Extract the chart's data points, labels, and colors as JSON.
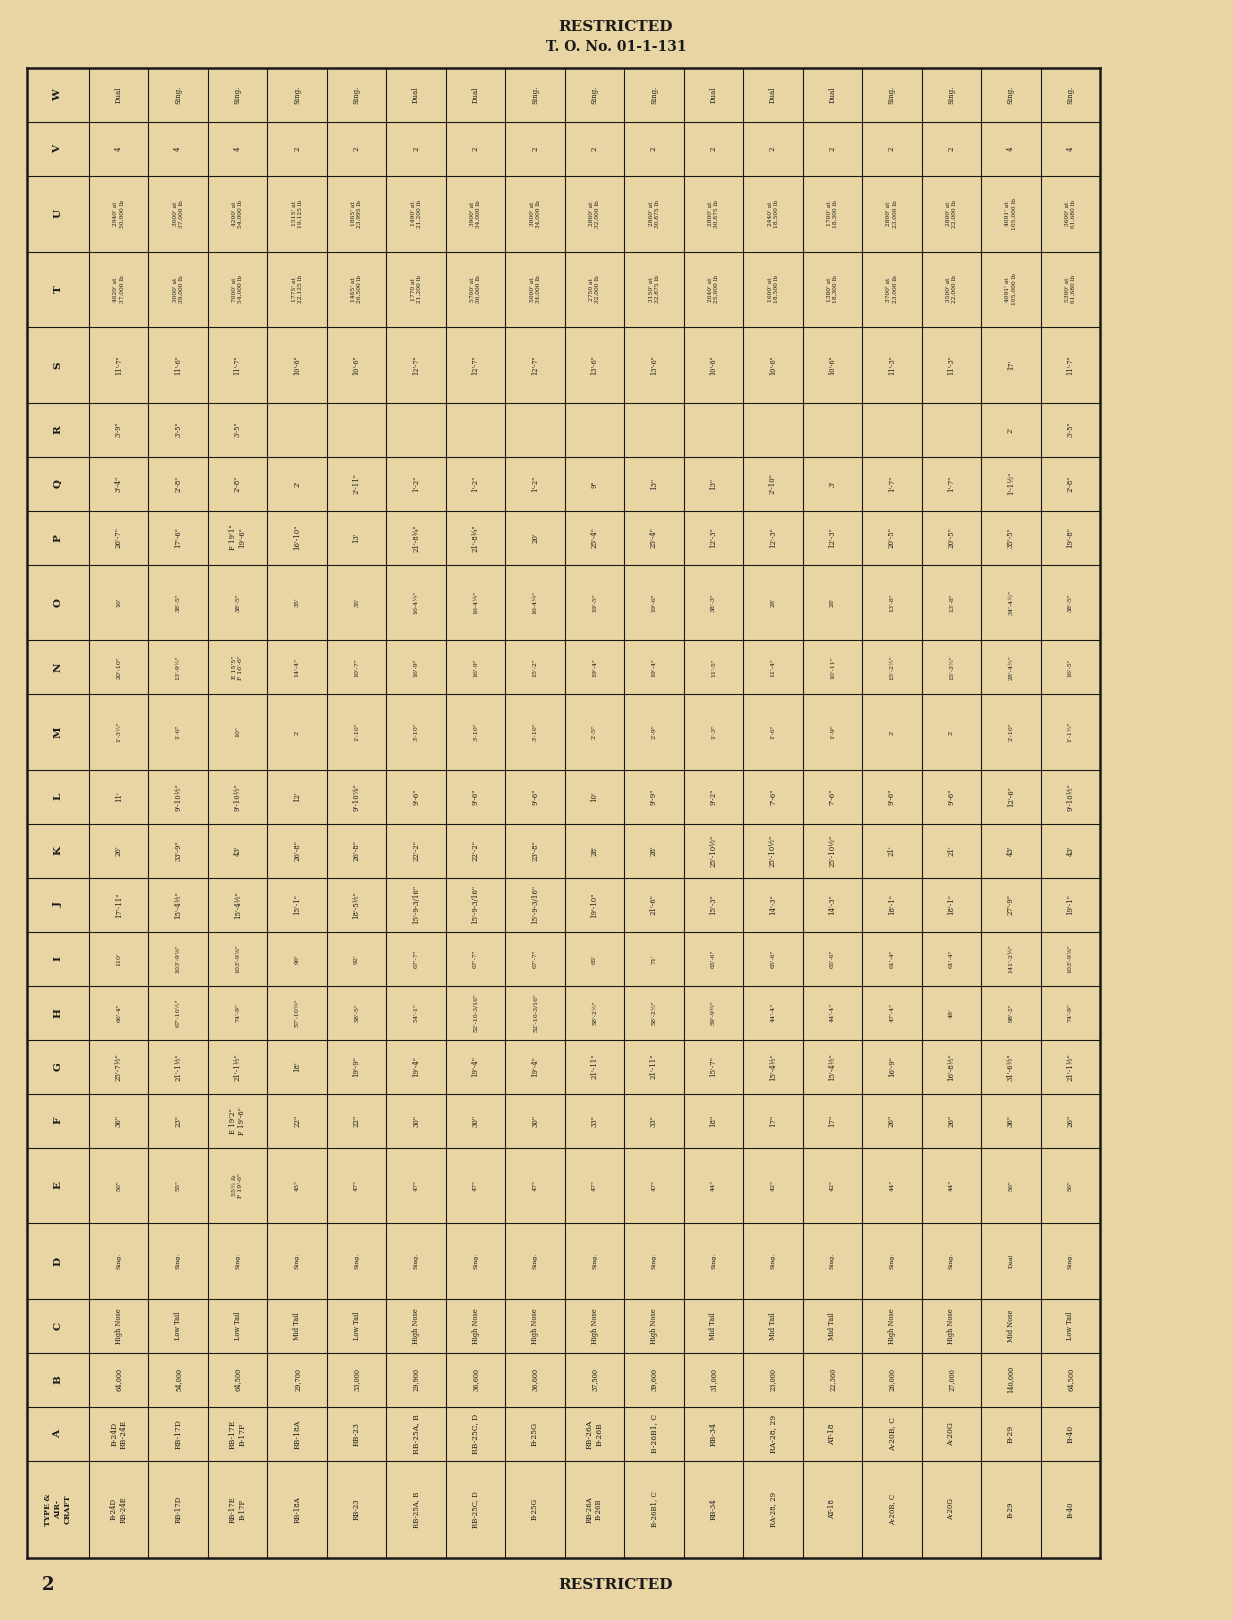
{
  "title1": "RESTRICTED",
  "title2": "T. O. No. 01-1-131",
  "page_num": "2",
  "footer": "RESTRICTED",
  "bg_color": "#E8D5A3",
  "line_color": "#1a1a1a",
  "text_color": "#1a1a1a",
  "row_headers": [
    "W",
    "V",
    "U",
    "T",
    "S",
    "R",
    "Q",
    "O",
    "P",
    "N",
    "M",
    "L",
    "K",
    "J",
    "I",
    "H",
    "G",
    "F",
    "E",
    "D",
    "C",
    "B",
    "A",
    "TYPE &\nAIR-\nCRAFT"
  ],
  "aircraft": [
    "B-24D\nRB-24E",
    "RB-17D",
    "RB-17E\nB-17F",
    "RB-18A",
    "RB-23",
    "RB-25A, B",
    "RB-25C, D",
    "B-25G",
    "RB-26A\nB-26B",
    "B-26B1, C",
    "RB-34",
    "RA-28, 29",
    "AT-18",
    "A-20B, C",
    "A-20G",
    "B-29",
    "B-40"
  ],
  "col_A": [
    "64,000",
    "54,000",
    "64,500",
    "29,700",
    "33,000",
    "29,900",
    "36,600",
    "36,600",
    "37,500",
    "39,600",
    "31,000",
    "23,000",
    "22,360",
    "26,000",
    "27,000",
    "140,000",
    "64,500"
  ],
  "col_B": [
    "High Nose",
    "Low Tail",
    "Low Tail",
    "Mid Tail",
    "Low Tail",
    "High Nose",
    "High Nose",
    "High Nose",
    "High Nose",
    "High Nose",
    "Mid Tail",
    "Mid Tail",
    "Mid Tail",
    "High Nose",
    "High Nose",
    "Mid Nose",
    "Low Tail"
  ],
  "col_C": [
    "Sing.",
    "Sing.",
    "Sing.",
    "Sing.",
    "Sing.",
    "Sing.",
    "Sing.",
    "Sing.",
    "Sing.",
    "Sing.",
    "Sing.",
    "Sing.",
    "Sing.",
    "Sing.",
    "Sing.",
    "Dual",
    "Sing."
  ],
  "col_D": [
    "56\"",
    "55\"",
    "55½ &\nF 19'-6\"",
    "45\"",
    "47\"",
    "47\"",
    "47\"",
    "47\"",
    "47\"",
    "47\"",
    "44\"",
    "42\"",
    "42\"",
    "44\"",
    "44\"",
    "56\"",
    "56\""
  ],
  "col_E": [
    "36\"",
    "23\"",
    "E 19'2\"\nF 19'-6\"",
    "22\"",
    "22\"",
    "30\"",
    "30\"",
    "30\"",
    "33\"",
    "33\"",
    "18\"",
    "17\"",
    "17\"",
    "26\"",
    "26\"",
    "36\"",
    "26\""
  ],
  "col_F": [
    "25'-7½\"",
    "21'-1½\"",
    "21'-1½\"",
    "18'",
    "19'-9\"",
    "19'-4\"",
    "19'-4\"",
    "19'-4\"",
    "21'-11\"",
    "21'-11\"",
    "15'-7\"",
    "15'-4½\"",
    "15'-4½\"",
    "16'-9\"",
    "16'-8½\"",
    "31'-6½\"",
    "21'-1½\""
  ],
  "col_G": [
    "66'-4\"",
    "67'-10½\"",
    "74'-9\"",
    "57'-10¼\"",
    "58'-5\"",
    "54'-1\"",
    "52'-10-3/16\"",
    "52'-10-3/16\"",
    "58'-2½\"",
    "58'-2½\"",
    "59'-9¾\"",
    "44'-4\"",
    "44'-4\"",
    "47'-4\"",
    "48'",
    "98'-2\"",
    "74'-9\""
  ],
  "col_H": [
    "110'",
    "103'-9⅞\"",
    "103'-9⅞\"",
    "90'",
    "92'",
    "67'-7\"",
    "67'-7\"",
    "67'-7\"",
    "65'",
    "71'",
    "65'-6\"",
    "65'-6\"",
    "65'-6\"",
    "61'-4\"",
    "61'-4\"",
    "141'-2¾\"",
    "103'-9⅞\""
  ],
  "col_I": [
    "17'-11\"",
    "15'-4½\"",
    "15'-4½\"",
    "15'-1\"",
    "18'-5½\"",
    "15'-9-3/16\"",
    "15'-9-3/16\"",
    "15'-9-3/16\"",
    "19'-10\"",
    "21'-6\"",
    "15'-3\"",
    "14'-3\"",
    "14'-3\"",
    "18'-1\"",
    "18'-1\"",
    "27'-9\"",
    "19'-1\""
  ],
  "col_J": [
    "26'",
    "33'-9\"",
    "43'",
    "26'-8\"",
    "26'-8\"",
    "22'-2\"",
    "22'-2\"",
    "23'-8\"",
    "28'",
    "28'",
    "25'-10½\"",
    "25'-10½\"",
    "25'-10½\"",
    "21'",
    "21'",
    "43'",
    "43'"
  ],
  "col_K": [
    "11'",
    "9'-10½\"",
    "9'-10½\"",
    "12'",
    "9'-10⅞\"",
    "9'-6\"",
    "9'-6\"",
    "9'-6\"",
    "10'",
    "9'-9\"",
    "9'-2\"",
    "7'-6\"",
    "7'-6\"",
    "9'-6\"",
    "9'-6\"",
    "12'-6\"",
    "9'-10½\""
  ],
  "col_L": [
    "1'-3½\"",
    "1'-6\"",
    "10\"",
    "2'",
    "1'-10\"",
    "3'-10\"",
    "3'-10\"",
    "3'-10\"",
    "2'-5\"",
    "2'-9\"",
    "1'-3\"",
    "1'-6\"",
    "1'-9\"",
    "2'",
    "2'",
    "2'-10\"",
    "1'-1½\""
  ],
  "col_M": [
    "20'-10\"",
    "13'-9½\"",
    "E 15'5\"\nF 16'-6\"",
    "14'-4\"",
    "10'-7\"",
    "16'-9\"",
    "16'-9\"",
    "15'-2\"",
    "19'-4\"",
    "19'-4\"",
    "11'-5\"",
    "11'-4\"",
    "10'-11\"",
    "15'-2½\"",
    "15'-3½\"",
    "28'-4½\"",
    "16'-5\""
  ],
  "col_N": [
    "16'",
    "38'-5\"",
    "38'-5\"",
    "35'",
    "35'",
    "16-4¼\"",
    "16-4¼\"",
    "16-4¼\"",
    "19'-5\"",
    "19'-6\"",
    "38'-3\"",
    "28'",
    "28'",
    "13'-8\"",
    "13'-8\"",
    "34'-4½\"",
    "38'-5\""
  ],
  "col_O": [
    "26'-7\"",
    "17'-6\"",
    "F 19'1\"\n19'-6\"",
    "16'-10\"",
    "13'",
    "21'-8¾\"",
    "21'-8¾\"",
    "20'",
    "25'-4\"",
    "25'-4\"",
    "12'-3\"",
    "12'-3\"",
    "12'-3\"",
    "20'-5\"",
    "20'-5\"",
    "35'-5\"",
    "19'-8\""
  ],
  "col_P": [
    "3'-4\"",
    "2'-8\"",
    "2'-8\"",
    "2'",
    "2'-11\"",
    "1'-2\"",
    "1'-2\"",
    "1'-2\"",
    "9\"",
    "13\"",
    "13\"",
    "2'-10\"",
    "3'",
    "1'-7\"",
    "1'-7\"",
    "1'-1½\"",
    "2'-8\""
  ],
  "col_Q": [
    "3'-9\"",
    "3'-5\"",
    "3'-5\"",
    "",
    "",
    "",
    "",
    "",
    "",
    "",
    "",
    "",
    "",
    "",
    "",
    "2'",
    "3'-5\""
  ],
  "col_R": [
    "11'-7\"",
    "11'-6\"",
    "11'-7\"",
    "10'-6\"",
    "10'-6\"",
    "12'-7\"",
    "12'-7\"",
    "12'-7\"",
    "13'-6\"",
    "13'-6\"",
    "10'-6\"",
    "10'-6\"",
    "10'-6\"",
    "11'-3\"",
    "11'-3\"",
    "17'",
    "11'-7\""
  ],
  "col_S": [
    "4620' at\n37,000 lb",
    "3000' at\n39,000 lb",
    "7000' at\n54,000 lb",
    "1775' at\n22,125 lb",
    "1465' at\n26,500 lb",
    "1770 at\n21,200 lb",
    "5700' at\n36,000 lb",
    "5000' at\n34,000 lb",
    "2750 at\n32,000 lb",
    "3150' at\n32,875 lb",
    "2640' at\n25,000 lb",
    "1600' at\n18,500 lb",
    "1380' at\n18,300 lb",
    "3700' at\n23,000 lb",
    "3500' at\n22,000 lb",
    "4091' at\n105,000 lb",
    "5300' at\n61,680 lb"
  ],
  "col_T": [
    "2940' at\n50,000 lb",
    "3000' at\n37,000 lb",
    "4200' at\n54,000 lb",
    "1515' at\n19,125 lb",
    "1865' at\n23,995 lb",
    "1490' at\n21,200 lb",
    "3900' at\n34,000 lb",
    "3000' at\n34,000 lb",
    "2860' at\n32,000 lb",
    "2860' at\n30,875 lb",
    "2800' at\n30,875 lb",
    "2440' at\n18,500 lb",
    "1700' at\n18,300 lb",
    "2800' at\n23,000 lb",
    "2800' at\n22,000 lb",
    "4091' at\n105,000 lb",
    "3600' at\n61,680 lb"
  ],
  "col_V": [
    "4",
    "4",
    "4",
    "2",
    "2",
    "2",
    "2",
    "2",
    "2",
    "2",
    "2",
    "2",
    "2",
    "2",
    "2",
    "4",
    "4"
  ],
  "col_W": [
    "Dual",
    "Sing.",
    "Sing.",
    "Sing.",
    "Sing.",
    "Dual",
    "Dual",
    "Sing.",
    "Sing.",
    "Sing.",
    "Dual",
    "Dual",
    "Dual",
    "Sing.",
    "Sing.",
    "Sing.",
    "Sing."
  ]
}
